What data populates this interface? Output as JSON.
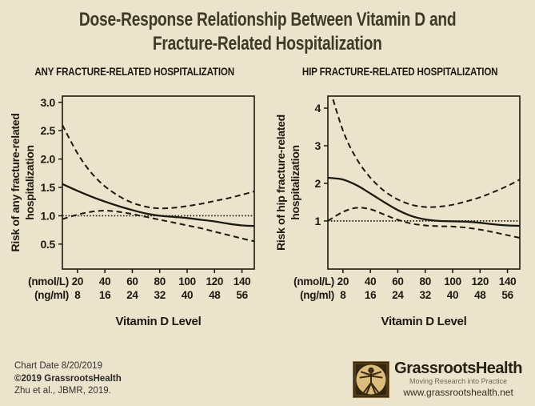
{
  "page": {
    "title_line1": "Dose-Response Relationship Between Vitamin D and",
    "title_line2": "Fracture-Related Hospitalization",
    "background_color": "#ece3cc",
    "title_color": "#3e3b25",
    "ink_color": "#1c1a10"
  },
  "footer": {
    "chart_date": "Chart Date 8/20/2019",
    "copyright": "©2019 GrassrootsHealth",
    "citation": "Zhu et al., JBMR, 2019.",
    "brand_name": "GrassrootsHealth",
    "brand_tagline": "Moving Research into Practice",
    "brand_url": "www.grassrootshealth.net",
    "logo_icon": "vitruvian-man-icon",
    "logo_colors": {
      "frame": "#6b5126",
      "inner": "#33270f",
      "circle": "#dcbc7c",
      "figure": "#3a2a10"
    }
  },
  "chart_data": [
    {
      "type": "line",
      "title": "ANY FRACTURE-RELATED HOSPITALIZATION",
      "ylabel_line1": "Risk of any fracture-related",
      "ylabel_line2": "hospitalization",
      "xlabel": "Vitamin D Level",
      "x_domain": [
        9,
        149
      ],
      "y_domain": [
        0.06,
        3.11
      ],
      "y_ticks": [
        0.5,
        1.0,
        1.5,
        2.0,
        2.5,
        3.0
      ],
      "y_tick_labels": [
        "0.5",
        "1.0",
        "1.5",
        "2.0",
        "2.5",
        "3.0"
      ],
      "x_ticks": {
        "values": [
          20,
          40,
          60,
          80,
          100,
          120,
          140
        ],
        "nmol_labels": [
          "20",
          "40",
          "60",
          "80",
          "100",
          "120",
          "140"
        ],
        "ng_labels": [
          "8",
          "16",
          "24",
          "32",
          "40",
          "48",
          "56"
        ],
        "unit_labels": [
          "(nmol/L)",
          "(ng/ml)"
        ]
      },
      "reference_y": 1.0,
      "x": [
        9,
        20,
        30,
        40,
        50,
        60,
        70,
        80,
        90,
        100,
        110,
        120,
        130,
        140,
        149
      ],
      "series": [
        {
          "name": "estimate",
          "style": "solid",
          "values": [
            1.56,
            1.44,
            1.34,
            1.25,
            1.17,
            1.1,
            1.04,
            1.0,
            0.98,
            0.96,
            0.93,
            0.9,
            0.86,
            0.83,
            0.82
          ]
        },
        {
          "name": "upper_ci",
          "style": "dashed",
          "values": [
            2.6,
            2.1,
            1.76,
            1.52,
            1.35,
            1.23,
            1.16,
            1.13,
            1.14,
            1.17,
            1.21,
            1.26,
            1.31,
            1.37,
            1.43
          ]
        },
        {
          "name": "lower_ci",
          "style": "dashed",
          "values": [
            0.94,
            1.02,
            1.07,
            1.09,
            1.07,
            1.03,
            0.98,
            0.93,
            0.88,
            0.83,
            0.78,
            0.72,
            0.66,
            0.6,
            0.55
          ]
        }
      ],
      "grid": false,
      "legend": "none"
    },
    {
      "type": "line",
      "title": "HIP FRACTURE-RELATED HOSPITALIZATION",
      "ylabel_line1": "Risk of hip fracture-related",
      "ylabel_line2": "hospitalization",
      "xlabel": "Vitamin D Level",
      "x_domain": [
        9,
        149
      ],
      "y_domain": [
        -0.28,
        4.32
      ],
      "y_ticks": [
        1,
        2,
        3,
        4
      ],
      "y_tick_labels": [
        "1",
        "2",
        "3",
        "4"
      ],
      "x_ticks": {
        "values": [
          20,
          40,
          60,
          80,
          100,
          120,
          140
        ],
        "nmol_labels": [
          "20",
          "40",
          "60",
          "80",
          "100",
          "120",
          "140"
        ],
        "ng_labels": [
          "8",
          "16",
          "24",
          "32",
          "40",
          "48",
          "56"
        ],
        "unit_labels": [
          "(nmol/L)",
          "(ng/ml)"
        ]
      },
      "reference_y": 1.0,
      "x": [
        9,
        20,
        30,
        40,
        50,
        60,
        70,
        80,
        90,
        100,
        110,
        120,
        130,
        140,
        149
      ],
      "series": [
        {
          "name": "estimate",
          "style": "solid",
          "values": [
            2.15,
            2.1,
            1.95,
            1.73,
            1.5,
            1.29,
            1.13,
            1.04,
            1.0,
            0.99,
            0.98,
            0.95,
            0.91,
            0.88,
            0.87
          ]
        },
        {
          "name": "upper_ci",
          "style": "dashed",
          "values": [
            4.7,
            3.4,
            2.65,
            2.15,
            1.8,
            1.57,
            1.43,
            1.37,
            1.38,
            1.43,
            1.52,
            1.63,
            1.77,
            1.93,
            2.1
          ]
        },
        {
          "name": "lower_ci",
          "style": "dashed",
          "values": [
            1.0,
            1.24,
            1.35,
            1.31,
            1.17,
            1.03,
            0.93,
            0.88,
            0.86,
            0.85,
            0.82,
            0.77,
            0.7,
            0.62,
            0.55
          ]
        }
      ],
      "grid": false,
      "legend": "none"
    }
  ]
}
